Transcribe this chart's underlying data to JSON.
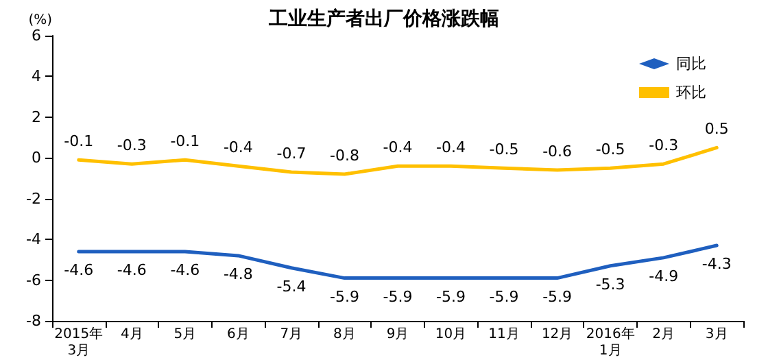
{
  "chart_data": {
    "type": "line",
    "title": "工业生产者出厂价格涨跌幅",
    "ylabel": "(%)",
    "categories": [
      "2015年\n3月",
      "4月",
      "5月",
      "6月",
      "7月",
      "8月",
      "9月",
      "10月",
      "11月",
      "12月",
      "2016年\n1月",
      "2月",
      "3月"
    ],
    "series": [
      {
        "name": "同比",
        "color": "#1f5fbf",
        "values": [
          -4.6,
          -4.6,
          -4.6,
          -4.8,
          -5.4,
          -5.9,
          -5.9,
          -5.9,
          -5.9,
          -5.9,
          -5.3,
          -4.9,
          -4.3
        ]
      },
      {
        "name": "环比",
        "color": "#ffc000",
        "values": [
          -0.1,
          -0.3,
          -0.1,
          -0.4,
          -0.7,
          -0.8,
          -0.4,
          -0.4,
          -0.5,
          -0.6,
          -0.5,
          -0.3,
          0.5
        ]
      }
    ],
    "ylim": [
      -8,
      6
    ],
    "yticks": [
      -8,
      -6,
      -4,
      -2,
      0,
      2,
      4,
      6
    ],
    "grid": false,
    "legend": "top right",
    "marker": "none",
    "line_style": "solid",
    "data_labels": true
  }
}
